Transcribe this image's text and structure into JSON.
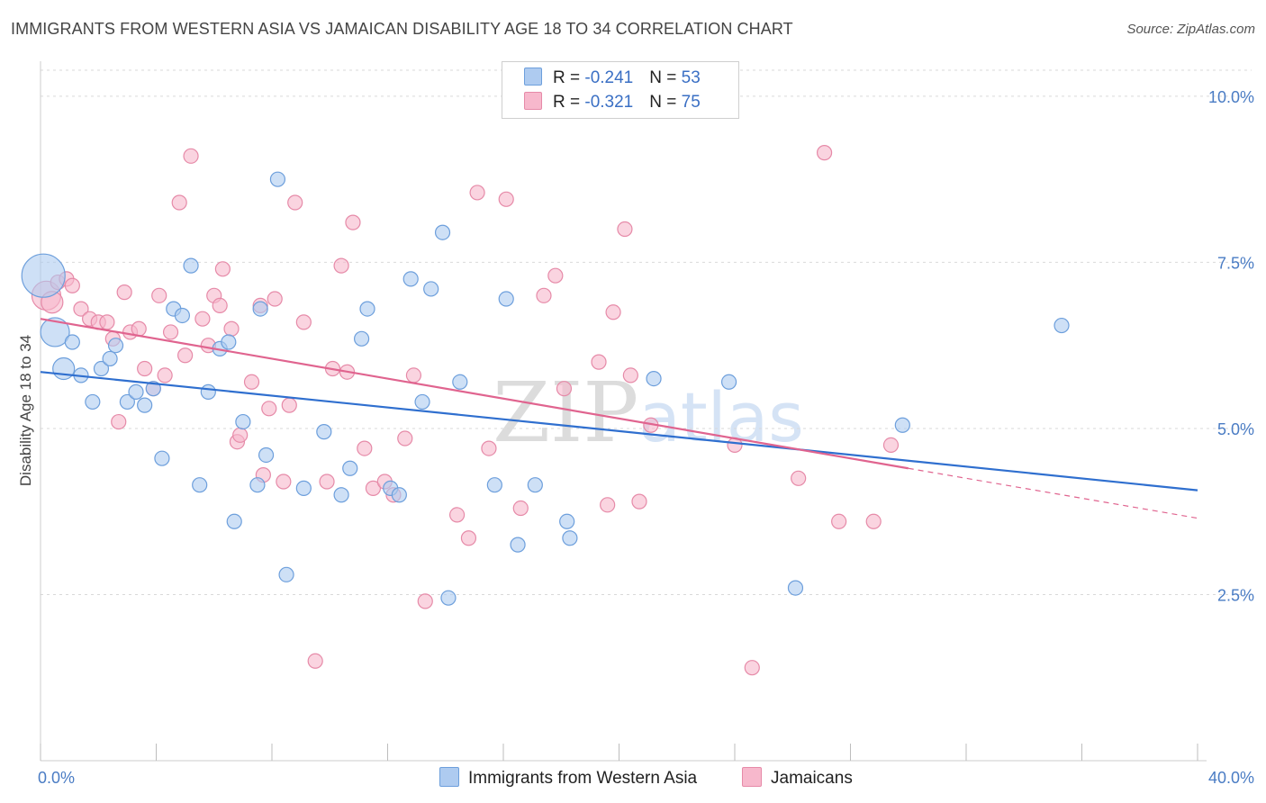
{
  "title": "IMMIGRANTS FROM WESTERN ASIA VS JAMAICAN DISABILITY AGE 18 TO 34 CORRELATION CHART",
  "source": "Source: ZipAtlas.com",
  "watermark": "ZIPatlas",
  "legend": {
    "rows": [
      {
        "r_label": "R = ",
        "r_value": "-0.241",
        "n_label": "N = ",
        "n_value": "53"
      },
      {
        "r_label": "R = ",
        "r_value": "-0.321",
        "n_label": "N = ",
        "n_value": "75"
      }
    ]
  },
  "colors": {
    "blue_fill": "#aecbf0",
    "blue_stroke": "#6d9fdc",
    "blue_line": "#2f6fcf",
    "pink_fill": "#f7b8cc",
    "pink_stroke": "#e68aa8",
    "pink_line": "#e0648f",
    "tick_text": "#4a7cc4",
    "grid": "#d9d9d9"
  },
  "chart_data": {
    "type": "scatter",
    "title": "IMMIGRANTS FROM WESTERN ASIA VS JAMAICAN DISABILITY AGE 18 TO 34 CORRELATION CHART",
    "xlabel": "",
    "ylabel": "Disability Age 18 to 34",
    "xlim": [
      0,
      40
    ],
    "ylim": [
      0,
      10.5
    ],
    "x_tick_labels": [
      "0.0%",
      "40.0%"
    ],
    "y_ticks": [
      2.5,
      5.0,
      7.5,
      10.0
    ],
    "y_tick_labels": [
      "2.5%",
      "5.0%",
      "7.5%",
      "10.0%"
    ],
    "grid": true,
    "legend_position": "top-center",
    "series": [
      {
        "name": "Immigrants from Western Asia",
        "color": "#aecbf0",
        "r": -0.241,
        "n": 53,
        "trend": {
          "x0": 0,
          "y0": 5.85,
          "x1": 40,
          "y1": 4.07
        },
        "points": [
          [
            0.1,
            7.3,
            3
          ],
          [
            0.5,
            6.45,
            2
          ],
          [
            0.8,
            5.9,
            1.5
          ],
          [
            1.1,
            6.3,
            1
          ],
          [
            1.4,
            5.8,
            1
          ],
          [
            1.8,
            5.4,
            1
          ],
          [
            2.1,
            5.9,
            1
          ],
          [
            2.4,
            6.05,
            1
          ],
          [
            2.6,
            6.25,
            1
          ],
          [
            3.0,
            5.4,
            1
          ],
          [
            3.3,
            5.55,
            1
          ],
          [
            3.6,
            5.35,
            1
          ],
          [
            3.9,
            5.6,
            1
          ],
          [
            4.2,
            4.55,
            1
          ],
          [
            4.6,
            6.8,
            1
          ],
          [
            4.9,
            6.7,
            1
          ],
          [
            5.2,
            7.45,
            1
          ],
          [
            5.5,
            4.15,
            1
          ],
          [
            5.8,
            5.55,
            1
          ],
          [
            6.2,
            6.2,
            1
          ],
          [
            6.5,
            6.3,
            1
          ],
          [
            6.7,
            3.6,
            1
          ],
          [
            7.0,
            5.1,
            1
          ],
          [
            7.5,
            4.15,
            1
          ],
          [
            7.6,
            6.8,
            1
          ],
          [
            7.8,
            4.6,
            1
          ],
          [
            8.2,
            8.75,
            1
          ],
          [
            8.5,
            2.8,
            1
          ],
          [
            9.1,
            4.1,
            1
          ],
          [
            9.8,
            4.95,
            1
          ],
          [
            10.4,
            4.0,
            1
          ],
          [
            10.7,
            4.4,
            1
          ],
          [
            11.1,
            6.35,
            1
          ],
          [
            11.3,
            6.8,
            1
          ],
          [
            12.1,
            4.1,
            1
          ],
          [
            12.4,
            4.0,
            1
          ],
          [
            12.8,
            7.25,
            1
          ],
          [
            13.2,
            5.4,
            1
          ],
          [
            13.5,
            7.1,
            1
          ],
          [
            13.9,
            7.95,
            1
          ],
          [
            14.1,
            2.45,
            1
          ],
          [
            14.5,
            5.7,
            1
          ],
          [
            15.7,
            4.15,
            1
          ],
          [
            16.1,
            6.95,
            1
          ],
          [
            16.5,
            3.25,
            1
          ],
          [
            17.1,
            4.15,
            1
          ],
          [
            18.2,
            3.6,
            1
          ],
          [
            18.3,
            3.35,
            1
          ],
          [
            21.2,
            5.75,
            1
          ],
          [
            23.8,
            5.7,
            1
          ],
          [
            26.1,
            2.6,
            1
          ],
          [
            29.8,
            5.05,
            1
          ],
          [
            35.3,
            6.55,
            1
          ]
        ]
      },
      {
        "name": "Jamaicans",
        "color": "#f7b8cc",
        "r": -0.321,
        "n": 75,
        "trend": {
          "x0": 0,
          "y0": 6.65,
          "x1": 30,
          "y1": 4.4
        },
        "trend_dashed": {
          "x0": 30,
          "y0": 4.4,
          "x1": 40,
          "y1": 3.65
        },
        "points": [
          [
            0.2,
            7.0,
            2
          ],
          [
            0.4,
            6.9,
            1.5
          ],
          [
            0.6,
            7.2,
            1
          ],
          [
            0.9,
            7.25,
            1
          ],
          [
            1.1,
            7.15,
            1
          ],
          [
            1.4,
            6.8,
            1
          ],
          [
            1.7,
            6.65,
            1
          ],
          [
            2.0,
            6.6,
            1
          ],
          [
            2.3,
            6.6,
            1
          ],
          [
            2.5,
            6.35,
            1
          ],
          [
            2.7,
            5.1,
            1
          ],
          [
            2.9,
            7.05,
            1
          ],
          [
            3.1,
            6.45,
            1
          ],
          [
            3.4,
            6.5,
            1
          ],
          [
            3.6,
            5.9,
            1
          ],
          [
            3.9,
            5.6,
            1
          ],
          [
            4.1,
            7.0,
            1
          ],
          [
            4.3,
            5.8,
            1
          ],
          [
            4.5,
            6.45,
            1
          ],
          [
            4.8,
            8.4,
            1
          ],
          [
            5.0,
            6.1,
            1
          ],
          [
            5.2,
            9.1,
            1
          ],
          [
            5.6,
            6.65,
            1
          ],
          [
            5.8,
            6.25,
            1
          ],
          [
            6.0,
            7.0,
            1
          ],
          [
            6.2,
            6.85,
            1
          ],
          [
            6.3,
            7.4,
            1
          ],
          [
            6.6,
            6.5,
            1
          ],
          [
            6.8,
            4.8,
            1
          ],
          [
            6.9,
            4.9,
            1
          ],
          [
            7.3,
            5.7,
            1
          ],
          [
            7.6,
            6.85,
            1
          ],
          [
            7.7,
            4.3,
            1
          ],
          [
            7.9,
            5.3,
            1
          ],
          [
            8.1,
            6.95,
            1
          ],
          [
            8.4,
            4.2,
            1
          ],
          [
            8.6,
            5.35,
            1
          ],
          [
            8.8,
            8.4,
            1
          ],
          [
            9.1,
            6.6,
            1
          ],
          [
            9.5,
            1.5,
            1
          ],
          [
            9.9,
            4.2,
            1
          ],
          [
            10.1,
            5.9,
            1
          ],
          [
            10.4,
            7.45,
            1
          ],
          [
            10.6,
            5.85,
            1
          ],
          [
            10.8,
            8.1,
            1
          ],
          [
            11.2,
            4.7,
            1
          ],
          [
            11.5,
            4.1,
            1
          ],
          [
            11.9,
            4.2,
            1
          ],
          [
            12.2,
            4.0,
            1
          ],
          [
            12.6,
            4.85,
            1
          ],
          [
            12.9,
            5.8,
            1
          ],
          [
            13.3,
            2.4,
            1
          ],
          [
            14.4,
            3.7,
            1
          ],
          [
            14.8,
            3.35,
            1
          ],
          [
            15.1,
            8.55,
            1
          ],
          [
            15.5,
            4.7,
            1
          ],
          [
            16.1,
            8.45,
            1
          ],
          [
            16.6,
            3.8,
            1
          ],
          [
            17.4,
            7.0,
            1
          ],
          [
            17.8,
            7.3,
            1
          ],
          [
            18.1,
            5.6,
            1
          ],
          [
            19.3,
            6.0,
            1
          ],
          [
            19.6,
            3.85,
            1
          ],
          [
            19.8,
            6.75,
            1
          ],
          [
            20.2,
            8.0,
            1
          ],
          [
            20.4,
            5.8,
            1
          ],
          [
            20.7,
            3.9,
            1
          ],
          [
            21.1,
            5.05,
            1
          ],
          [
            24.0,
            4.75,
            1
          ],
          [
            24.6,
            1.4,
            1
          ],
          [
            26.2,
            4.25,
            1
          ],
          [
            27.1,
            9.15,
            1
          ],
          [
            27.6,
            3.6,
            1
          ],
          [
            28.8,
            3.6,
            1
          ],
          [
            29.4,
            4.75,
            1
          ]
        ]
      }
    ]
  },
  "bottom_legend": [
    {
      "label": "Immigrants from Western Asia"
    },
    {
      "label": "Jamaicans"
    }
  ]
}
